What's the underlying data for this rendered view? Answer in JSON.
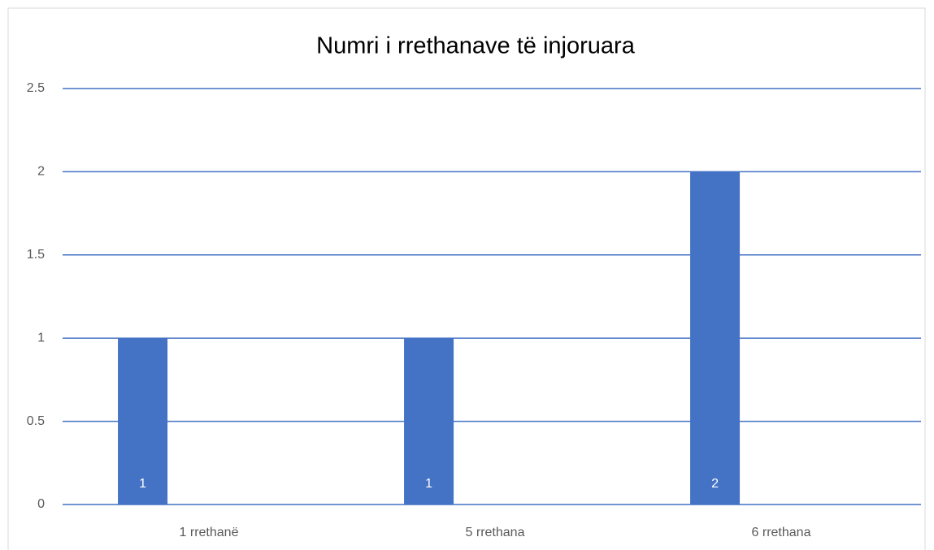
{
  "chart_data": {
    "type": "bar",
    "title": "Numri i rrethanave të injoruara",
    "categories": [
      "1 rrethanë",
      "5 rrethana",
      "6 rrethana"
    ],
    "values": [
      1,
      1,
      2
    ],
    "color": "#4472c4",
    "ylim": [
      0,
      2.5
    ],
    "yticks": [
      0,
      0.5,
      1,
      1.5,
      2,
      2.5
    ],
    "grid": true
  }
}
